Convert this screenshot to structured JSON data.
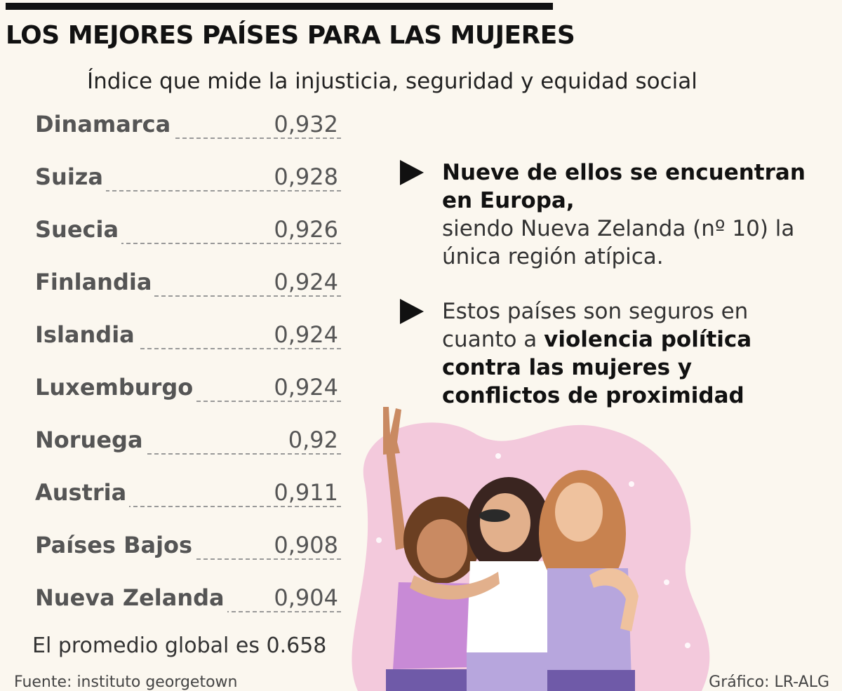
{
  "title": "LOS MEJORES PAÍSES PARA LAS MUJERES",
  "subtitle": "Índice que mide la injusticia, seguridad y equidad social",
  "chart_data": {
    "type": "table",
    "title": "LOS MEJORES PAÍSES PARA LAS MUJERES",
    "subtitle": "Índice que mide la injusticia, seguridad y equidad social",
    "categories": [
      "Dinamarca",
      "Suiza",
      "Suecia",
      "Finlandia",
      "Islandia",
      "Luxemburgo",
      "Noruega",
      "Austria",
      "Países Bajos",
      "Nueva Zelanda"
    ],
    "values": [
      0.932,
      0.928,
      0.926,
      0.924,
      0.924,
      0.924,
      0.92,
      0.911,
      0.908,
      0.904
    ],
    "value_labels": [
      "0,932",
      "0,928",
      "0,926",
      "0,924",
      "0,924",
      "0,924",
      "0,92",
      "0,911",
      "0,908",
      "0,904"
    ]
  },
  "note": "El promedio global es 0.658",
  "callouts": [
    {
      "bold": "Nueve de ellos se encuentran en Europa,",
      "text": "siendo Nueva Zelanda (nº 10) la única región atípica."
    },
    {
      "text": "Estos países son seguros en cuanto a",
      "bold": "violencia política contra las mujeres y conflictos de proximidad"
    }
  ],
  "source": "Fuente: instituto georgetown",
  "credit": "Gráfico: LR-ALG",
  "colors": {
    "background": "#fbf7ef",
    "blob": "#f3c9dc",
    "top_rule": "#111111"
  },
  "icons": [
    "triangle-bullet-icon",
    "triangle-bullet-icon"
  ]
}
